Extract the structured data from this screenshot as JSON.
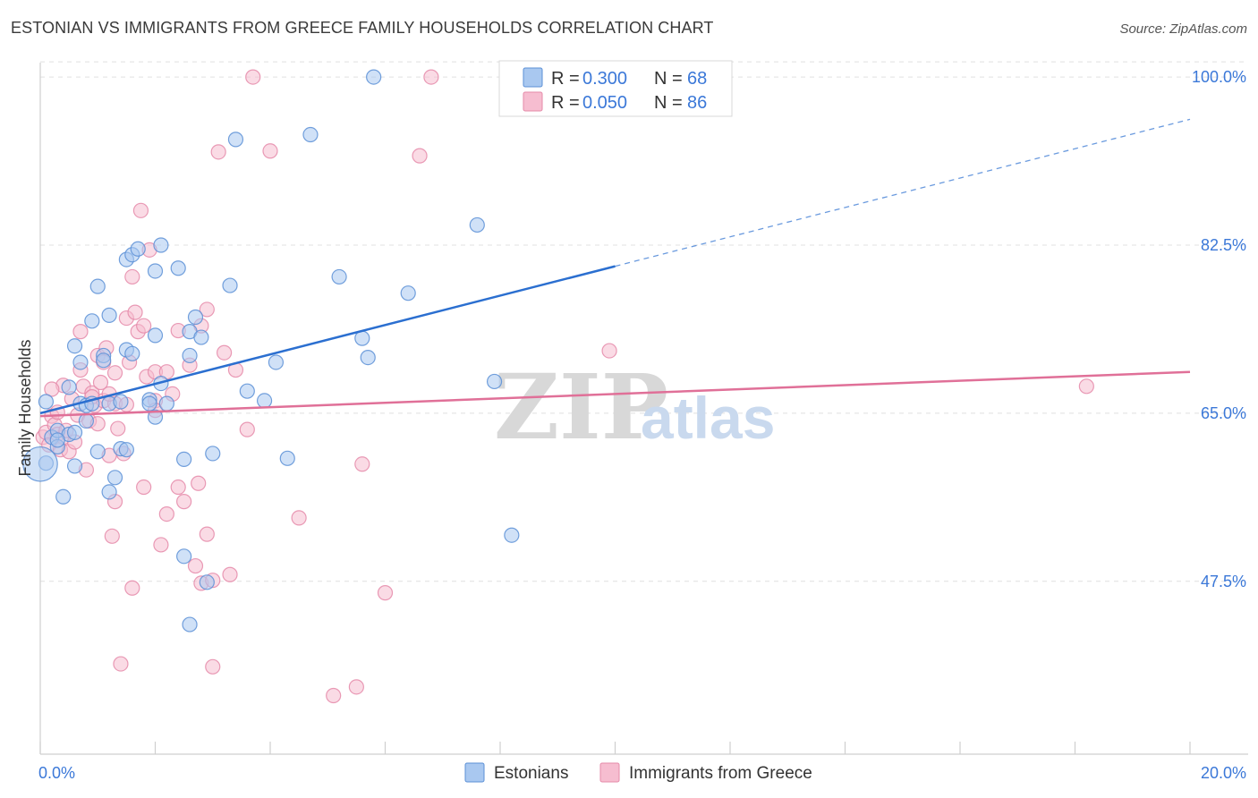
{
  "title": "ESTONIAN VS IMMIGRANTS FROM GREECE FAMILY HOUSEHOLDS CORRELATION CHART",
  "source": "Source: ZipAtlas.com",
  "watermark": {
    "zip": "ZIP",
    "atlas": "atlas"
  },
  "colors": {
    "estonians_fill": "#a9c8f0",
    "estonians_stroke": "#5b8fd6",
    "estonians_line": "#2b6fd0",
    "greece_fill": "#f6bdd0",
    "greece_stroke": "#e58aa9",
    "greece_line": "#e07098",
    "grid": "#e0e0e0",
    "accent_text": "#3b78d8"
  },
  "legend": {
    "rows": [
      {
        "r_label": "R =",
        "r_value": "0.300",
        "n_label": "N =",
        "n_value": "68",
        "series": "estonians"
      },
      {
        "r_label": "R =",
        "r_value": "0.050",
        "n_label": "N =",
        "n_value": "86",
        "series": "greece"
      }
    ]
  },
  "chart_data": {
    "type": "scatter",
    "title": "ESTONIAN VS IMMIGRANTS FROM GREECE FAMILY HOUSEHOLDS CORRELATION CHART",
    "xlabel": "",
    "ylabel": "Family Households",
    "xlim": [
      0,
      20
    ],
    "ylim": [
      29.5,
      101.5
    ],
    "x_tick_labels": [
      "0.0%",
      "20.0%"
    ],
    "x_ticks": [
      0,
      20
    ],
    "y_ticks": [
      47.5,
      65.0,
      82.5,
      100.0
    ],
    "y_tick_labels": [
      "47.5%",
      "65.0%",
      "82.5%",
      "100.0%"
    ],
    "grid": true,
    "legend_position": "top-center",
    "series": [
      {
        "name": "Estonians",
        "color": "#5b8fd6",
        "trend": {
          "x0": 0,
          "y0": 65.0,
          "x1": 10,
          "y1": 80.3,
          "dash_to_x": 20,
          "dash_to_y": 95.6
        },
        "points": [
          [
            0.1,
            59.8,
            1
          ],
          [
            0.1,
            66.2,
            1
          ],
          [
            0.2,
            62.5,
            1
          ],
          [
            0.3,
            63.2,
            1
          ],
          [
            0.3,
            61.5,
            1
          ],
          [
            0.4,
            56.3,
            1
          ],
          [
            0.5,
            62.8,
            1
          ],
          [
            0.6,
            59.5,
            1
          ],
          [
            0.5,
            67.7,
            1
          ],
          [
            0.6,
            72.0,
            1
          ],
          [
            0.7,
            70.3,
            1
          ],
          [
            0.7,
            66.0,
            1
          ],
          [
            0.8,
            65.8,
            1
          ],
          [
            0.8,
            64.2,
            1
          ],
          [
            0.9,
            74.6,
            1
          ],
          [
            0.9,
            66.0,
            1
          ],
          [
            1.0,
            61.0,
            1
          ],
          [
            1.0,
            78.2,
            1
          ],
          [
            1.1,
            71.0,
            1
          ],
          [
            1.1,
            70.5,
            1
          ],
          [
            1.2,
            66.0,
            1
          ],
          [
            1.2,
            56.8,
            1
          ],
          [
            1.2,
            75.2,
            1
          ],
          [
            1.3,
            58.3,
            1
          ],
          [
            1.4,
            61.3,
            1
          ],
          [
            1.4,
            66.2,
            1
          ],
          [
            1.5,
            71.6,
            1
          ],
          [
            1.5,
            81.0,
            1
          ],
          [
            1.5,
            61.2,
            1
          ],
          [
            1.6,
            71.2,
            1
          ],
          [
            1.6,
            81.5,
            1
          ],
          [
            1.7,
            82.1,
            1
          ],
          [
            1.9,
            66.4,
            1
          ],
          [
            1.9,
            66.0,
            1
          ],
          [
            2.0,
            73.1,
            1
          ],
          [
            2.0,
            64.6,
            1
          ],
          [
            2.0,
            79.8,
            1
          ],
          [
            2.1,
            68.1,
            1
          ],
          [
            2.1,
            82.5,
            1
          ],
          [
            2.2,
            66.0,
            1
          ],
          [
            2.4,
            80.1,
            1
          ],
          [
            2.5,
            50.1,
            1
          ],
          [
            2.5,
            60.2,
            1
          ],
          [
            2.6,
            71.0,
            1
          ],
          [
            2.6,
            43.0,
            1
          ],
          [
            2.6,
            73.5,
            1
          ],
          [
            2.7,
            75.0,
            1
          ],
          [
            2.8,
            72.9,
            1
          ],
          [
            2.9,
            47.4,
            1
          ],
          [
            3.0,
            60.8,
            1
          ],
          [
            3.3,
            78.3,
            1
          ],
          [
            3.4,
            93.5,
            1
          ],
          [
            3.6,
            67.3,
            1
          ],
          [
            3.9,
            66.3,
            1
          ],
          [
            4.1,
            70.3,
            1
          ],
          [
            4.3,
            60.3,
            1
          ],
          [
            4.7,
            94.0,
            1
          ],
          [
            5.2,
            79.2,
            1
          ],
          [
            5.6,
            72.8,
            1
          ],
          [
            5.7,
            70.8,
            1
          ],
          [
            5.8,
            100.0,
            1
          ],
          [
            6.4,
            77.5,
            1
          ],
          [
            7.6,
            84.6,
            1
          ],
          [
            7.9,
            68.3,
            1
          ],
          [
            8.2,
            52.3,
            1
          ],
          [
            0.3,
            62.2,
            1
          ],
          [
            0.6,
            63.0,
            1
          ],
          [
            0.0,
            59.7,
            3
          ]
        ]
      },
      {
        "name": "Immigrants from Greece",
        "color": "#e58aa9",
        "trend": {
          "x0": 0,
          "y0": 64.7,
          "x1": 20,
          "y1": 69.3
        },
        "points": [
          [
            0.05,
            62.5,
            1
          ],
          [
            0.1,
            63.0,
            1
          ],
          [
            0.15,
            61.7,
            1
          ],
          [
            0.2,
            64.7,
            1
          ],
          [
            0.25,
            63.8,
            1
          ],
          [
            0.3,
            62.8,
            1
          ],
          [
            0.3,
            65.1,
            1
          ],
          [
            0.35,
            61.2,
            1
          ],
          [
            0.4,
            62.5,
            1
          ],
          [
            0.4,
            67.9,
            1
          ],
          [
            0.45,
            63.2,
            1
          ],
          [
            0.5,
            61.0,
            1
          ],
          [
            0.55,
            66.5,
            1
          ],
          [
            0.6,
            62.0,
            1
          ],
          [
            0.65,
            64.8,
            1
          ],
          [
            0.7,
            69.5,
            1
          ],
          [
            0.7,
            73.5,
            1
          ],
          [
            0.75,
            67.8,
            1
          ],
          [
            0.8,
            59.1,
            1
          ],
          [
            0.85,
            64.2,
            1
          ],
          [
            0.9,
            67.1,
            1
          ],
          [
            0.95,
            65.8,
            1
          ],
          [
            1.0,
            71.0,
            1
          ],
          [
            1.0,
            63.9,
            1
          ],
          [
            1.05,
            68.2,
            1
          ],
          [
            1.1,
            70.3,
            1
          ],
          [
            1.1,
            66.3,
            1
          ],
          [
            1.15,
            71.8,
            1
          ],
          [
            1.2,
            60.6,
            1
          ],
          [
            1.25,
            52.2,
            1
          ],
          [
            1.3,
            55.8,
            1
          ],
          [
            1.3,
            69.2,
            1
          ],
          [
            1.3,
            66.0,
            1
          ],
          [
            1.35,
            63.4,
            1
          ],
          [
            1.4,
            38.9,
            1
          ],
          [
            1.45,
            60.8,
            1
          ],
          [
            1.5,
            65.9,
            1
          ],
          [
            1.5,
            74.9,
            1
          ],
          [
            1.55,
            70.3,
            1
          ],
          [
            1.6,
            79.2,
            1
          ],
          [
            1.6,
            46.8,
            1
          ],
          [
            1.65,
            75.5,
            1
          ],
          [
            1.7,
            73.5,
            1
          ],
          [
            1.75,
            86.1,
            1
          ],
          [
            1.8,
            74.1,
            1
          ],
          [
            1.8,
            57.3,
            1
          ],
          [
            1.85,
            68.8,
            1
          ],
          [
            1.9,
            82.0,
            1
          ],
          [
            2.0,
            66.3,
            1
          ],
          [
            2.0,
            65.3,
            1
          ],
          [
            2.0,
            69.3,
            1
          ],
          [
            2.1,
            51.3,
            1
          ],
          [
            2.2,
            54.5,
            1
          ],
          [
            2.2,
            69.3,
            1
          ],
          [
            2.3,
            67.0,
            1
          ],
          [
            2.4,
            57.3,
            1
          ],
          [
            2.4,
            73.6,
            1
          ],
          [
            2.5,
            55.8,
            1
          ],
          [
            2.6,
            70.0,
            1
          ],
          [
            2.7,
            49.1,
            1
          ],
          [
            2.75,
            57.7,
            1
          ],
          [
            2.8,
            47.3,
            1
          ],
          [
            2.8,
            74.1,
            1
          ],
          [
            2.9,
            75.8,
            1
          ],
          [
            2.9,
            52.4,
            1
          ],
          [
            3.0,
            38.6,
            1
          ],
          [
            3.0,
            47.6,
            1
          ],
          [
            3.1,
            92.2,
            1
          ],
          [
            3.2,
            71.3,
            1
          ],
          [
            3.3,
            48.2,
            1
          ],
          [
            3.4,
            69.5,
            1
          ],
          [
            3.6,
            63.3,
            1
          ],
          [
            3.7,
            100.0,
            1
          ],
          [
            4.0,
            92.3,
            1
          ],
          [
            4.5,
            54.1,
            1
          ],
          [
            5.1,
            35.6,
            1
          ],
          [
            5.5,
            36.5,
            1
          ],
          [
            5.6,
            59.7,
            1
          ],
          [
            6.0,
            46.3,
            1
          ],
          [
            6.6,
            91.8,
            1
          ],
          [
            6.8,
            100.0,
            1
          ],
          [
            9.9,
            71.5,
            1
          ],
          [
            18.2,
            67.8,
            1
          ],
          [
            0.2,
            67.5,
            1
          ],
          [
            1.2,
            67.0,
            1
          ],
          [
            0.9,
            66.7,
            1
          ]
        ]
      }
    ]
  },
  "bottom_legend": {
    "items": [
      {
        "label": "Estonians",
        "series": "estonians"
      },
      {
        "label": "Immigrants from Greece",
        "series": "greece"
      }
    ]
  }
}
